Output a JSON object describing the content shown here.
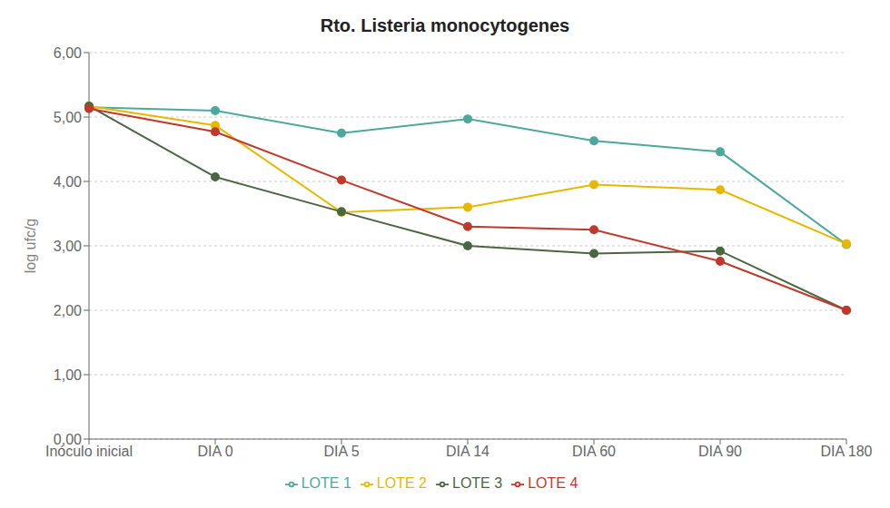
{
  "chart_data": {
    "type": "line",
    "title": "Rto. Listeria monocytogenes",
    "y_label": "log ufc/g",
    "categories": [
      "Inóculo inicial",
      "DIA 0",
      "DIA 5",
      "DIA 14",
      "DIA 60",
      "DIA 90",
      "DIA 180"
    ],
    "series": [
      {
        "name": "LOTE 1",
        "color": "#4BA99C",
        "marker": "circle",
        "values": [
          5.15,
          5.1,
          4.75,
          4.97,
          4.63,
          4.46,
          3.02
        ]
      },
      {
        "name": "LOTE 2",
        "color": "#E8B800",
        "marker": "circle",
        "values": [
          5.17,
          4.87,
          3.52,
          3.6,
          3.95,
          3.87,
          3.03
        ]
      },
      {
        "name": "LOTE 3",
        "color": "#4A6741",
        "marker": "circle",
        "values": [
          5.17,
          4.07,
          3.53,
          3.0,
          2.88,
          2.92,
          2.0
        ]
      },
      {
        "name": "LOTE 4",
        "color": "#C0392B",
        "marker": "circle",
        "values": [
          5.13,
          4.77,
          4.02,
          3.3,
          3.25,
          2.76,
          2.0
        ]
      }
    ],
    "ylim": [
      0.0,
      6.0
    ],
    "yticks": [
      {
        "value": 0.0,
        "label": "0,00"
      },
      {
        "value": 1.0,
        "label": "1,00"
      },
      {
        "value": 2.0,
        "label": "2,00"
      },
      {
        "value": 3.0,
        "label": "3,00"
      },
      {
        "value": 4.0,
        "label": "4,00"
      },
      {
        "value": 5.0,
        "label": "5,00"
      },
      {
        "value": 6.0,
        "label": "6,00"
      }
    ],
    "grid": "y",
    "legend": "bottom"
  }
}
